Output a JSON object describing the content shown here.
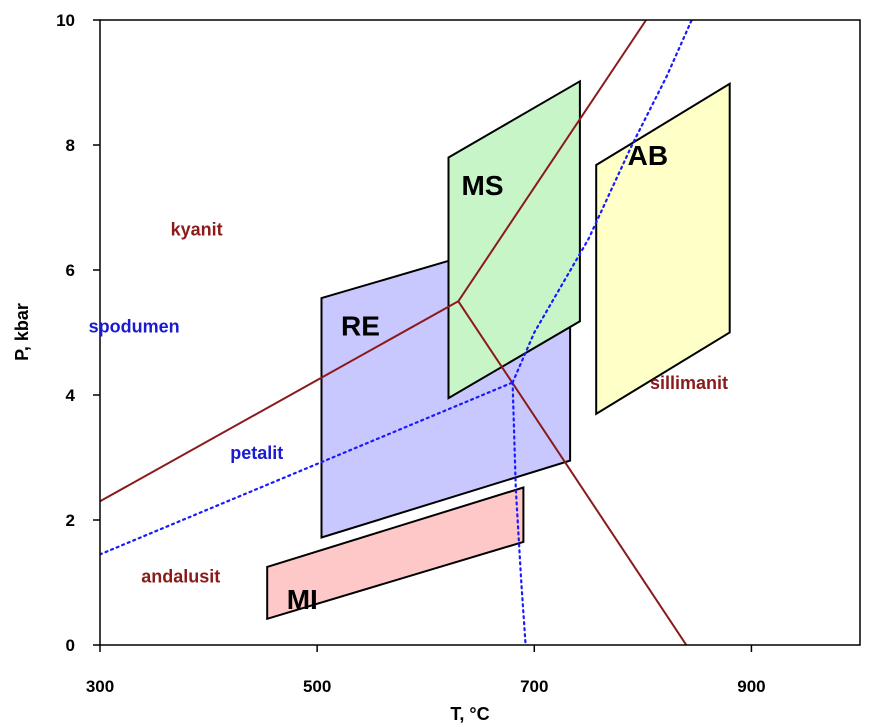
{
  "chart_data": {
    "type": "line",
    "xlabel": "T, °C",
    "ylabel": "P, kbar",
    "xlim": [
      300,
      1000
    ],
    "ylim": [
      0,
      10
    ],
    "xticks": [
      300,
      500,
      700,
      900
    ],
    "yticks": [
      0,
      2,
      4,
      6,
      8,
      10
    ],
    "grid": false,
    "colors": {
      "aluminosilicate": "#8b1a1a",
      "lithium": "#1a1aff",
      "label_red": "#8b1a1a",
      "label_blue": "#1a1ad0"
    },
    "series": [
      {
        "name": "kyanite-andalusite",
        "style": "solid",
        "color": "#8b1a1a",
        "x": [
          300,
          630
        ],
        "y": [
          2.3,
          5.5
        ]
      },
      {
        "name": "kyanite-sillimanite",
        "style": "solid",
        "color": "#8b1a1a",
        "x": [
          630,
          803
        ],
        "y": [
          5.5,
          10
        ]
      },
      {
        "name": "andalusite-sillimanite",
        "style": "solid",
        "color": "#8b1a1a",
        "x": [
          630,
          840
        ],
        "y": [
          5.5,
          0
        ]
      },
      {
        "name": "spodumene-petalite",
        "style": "dotted",
        "color": "#1a1aff",
        "x": [
          300,
          680
        ],
        "y": [
          1.45,
          4.2
        ]
      },
      {
        "name": "spodumene-boundary-upper",
        "style": "dotted",
        "color": "#1a1aff",
        "x": [
          680,
          700,
          750,
          790,
          822,
          845
        ],
        "y": [
          4.2,
          5.0,
          6.5,
          8.0,
          9.1,
          10
        ]
      },
      {
        "name": "petalite-boundary-lower",
        "style": "dotted",
        "color": "#1a1aff",
        "x": [
          680,
          683,
          688,
          692
        ],
        "y": [
          4.2,
          2.5,
          1.0,
          0
        ]
      }
    ],
    "regions": [
      {
        "label": "RE",
        "fill": "#c8c8ff",
        "points": [
          [
            504,
            5.55
          ],
          [
            622,
            6.15
          ],
          [
            733,
            5.15
          ],
          [
            733,
            2.95
          ],
          [
            504,
            1.72
          ]
        ]
      },
      {
        "label": "MS",
        "fill": "#c8f5c8",
        "points": [
          [
            621,
            7.8
          ],
          [
            742,
            9.02
          ],
          [
            742,
            5.18
          ],
          [
            621,
            3.95
          ]
        ]
      },
      {
        "label": "AB",
        "fill": "#ffffc8",
        "points": [
          [
            757,
            7.68
          ],
          [
            880,
            8.98
          ],
          [
            880,
            5.0
          ],
          [
            757,
            3.7
          ]
        ]
      },
      {
        "label": "MI",
        "fill": "#ffc8c8",
        "points": [
          [
            454,
            1.25
          ],
          [
            690,
            2.52
          ],
          [
            690,
            1.65
          ],
          [
            454,
            0.42
          ]
        ]
      }
    ],
    "annotations": [
      {
        "text": "kyanit",
        "color": "#8b1a1a",
        "x": 365,
        "y": 6.55
      },
      {
        "text": "spodumen",
        "color": "#1a1ad0",
        "x": 331,
        "y": 5.0
      },
      {
        "text": "andalusit",
        "color": "#8b1a1a",
        "x": 338,
        "y": 1.0
      },
      {
        "text": "sillimanit",
        "color": "#8b1a1a",
        "x": 848,
        "y": 4.1
      },
      {
        "text": "petalit",
        "color": "#1a1ad0",
        "x": 420,
        "y": 2.98
      }
    ]
  }
}
